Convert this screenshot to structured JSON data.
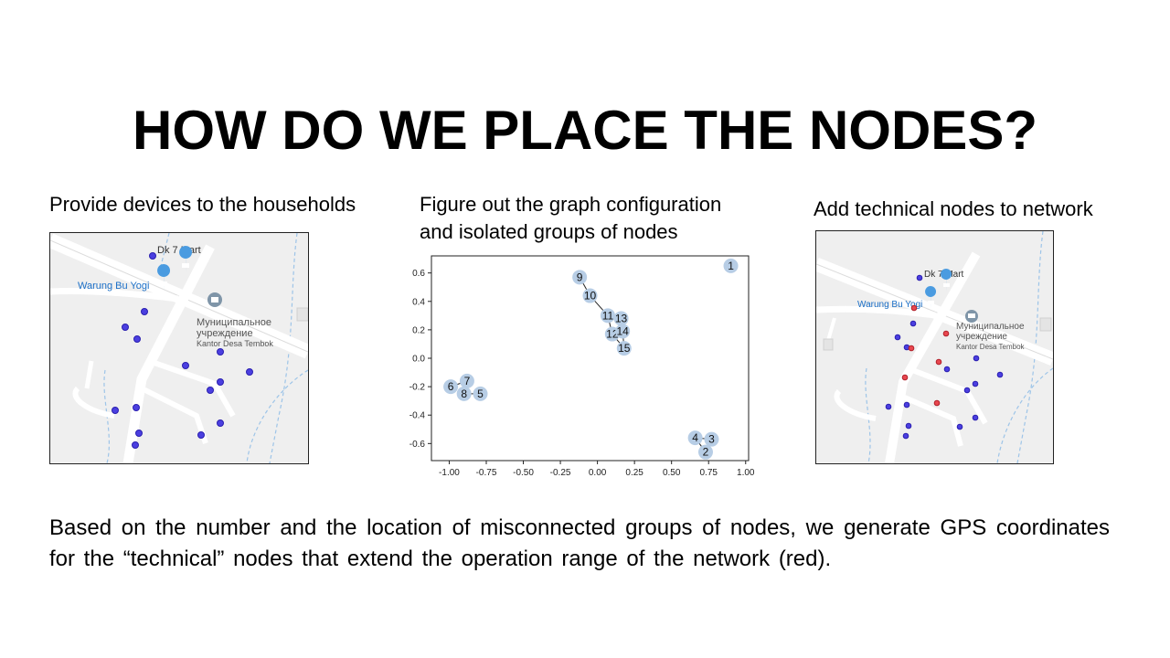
{
  "slide": {
    "title": "HOW DO WE PLACE THE NODES?",
    "captions": [
      "Provide devices to the households",
      "Figure out the graph configuration\nand isolated groups of nodes",
      "Add technical nodes to network"
    ],
    "body": "Based on the number and the location of misconnected groups of nodes, we generate GPS coordinates for the “technical” nodes that extend the operation range of the network (red)."
  },
  "map1": {
    "labels": {
      "place1": "Dk 7 Mart",
      "place2": "Warung Bu Yogi",
      "place3_line1": "Муниципальное",
      "place3_line2": "учреждение",
      "place3_line3": "Kantor Desa Tembok"
    },
    "household_color": "#4b3fe0"
  },
  "map2": {
    "labels": {
      "place1": "Dk 7 Mart",
      "place2": "Warung Bu Yogi",
      "place3_line1": "Муниципальное",
      "place3_line2": "учреждение",
      "place3_line3": "Kantor Desa Tembok"
    },
    "household_color": "#4b3fe0",
    "technical_color": "#e8474f"
  },
  "chart_data": {
    "type": "scatter",
    "xlim": [
      -1.12,
      1.02
    ],
    "ylim": [
      -0.72,
      0.72
    ],
    "xticks": [
      "-1.00",
      "-0.75",
      "-0.50",
      "-0.25",
      "0.00",
      "0.25",
      "0.50",
      "0.75",
      "1.00"
    ],
    "xtick_values": [
      -1.0,
      -0.75,
      -0.5,
      -0.25,
      0.0,
      0.25,
      0.5,
      0.75,
      1.0
    ],
    "yticks": [
      "0.6",
      "0.4",
      "0.2",
      "0.0",
      "-0.2",
      "-0.4",
      "-0.6"
    ],
    "ytick_values": [
      0.6,
      0.4,
      0.2,
      0.0,
      -0.2,
      -0.4,
      -0.6
    ],
    "node_color": "#b7cde5",
    "nodes": [
      {
        "id": "1",
        "x": 0.9,
        "y": 0.65
      },
      {
        "id": "2",
        "x": 0.73,
        "y": -0.66
      },
      {
        "id": "3",
        "x": 0.77,
        "y": -0.57
      },
      {
        "id": "4",
        "x": 0.66,
        "y": -0.56
      },
      {
        "id": "5",
        "x": -0.79,
        "y": -0.25
      },
      {
        "id": "6",
        "x": -0.99,
        "y": -0.2
      },
      {
        "id": "7",
        "x": -0.88,
        "y": -0.16
      },
      {
        "id": "8",
        "x": -0.9,
        "y": -0.25
      },
      {
        "id": "9",
        "x": -0.12,
        "y": 0.57
      },
      {
        "id": "10",
        "x": -0.05,
        "y": 0.44
      },
      {
        "id": "11",
        "x": 0.07,
        "y": 0.3
      },
      {
        "id": "12",
        "x": 0.1,
        "y": 0.17
      },
      {
        "id": "13",
        "x": 0.16,
        "y": 0.28
      },
      {
        "id": "14",
        "x": 0.17,
        "y": 0.19
      },
      {
        "id": "15",
        "x": 0.18,
        "y": 0.07
      }
    ],
    "edges": [
      [
        "6",
        "7"
      ],
      [
        "7",
        "8"
      ],
      [
        "8",
        "5"
      ],
      [
        "9",
        "10"
      ],
      [
        "10",
        "11"
      ],
      [
        "11",
        "12"
      ],
      [
        "11",
        "13"
      ],
      [
        "12",
        "14"
      ],
      [
        "13",
        "14"
      ],
      [
        "14",
        "15"
      ],
      [
        "12",
        "15"
      ],
      [
        "4",
        "2"
      ],
      [
        "2",
        "3"
      ],
      [
        "3",
        "4"
      ]
    ]
  }
}
